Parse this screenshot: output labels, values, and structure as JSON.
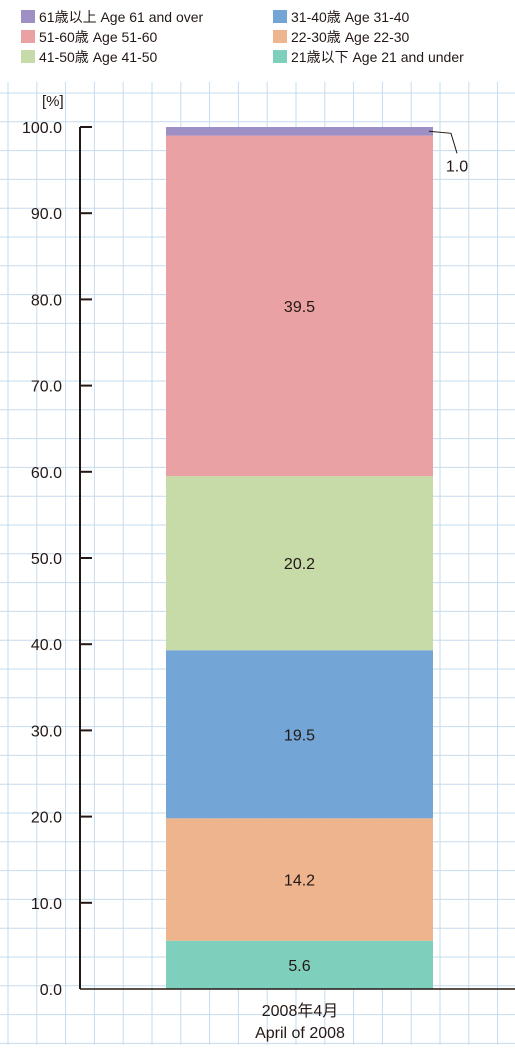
{
  "chart_data": {
    "type": "bar",
    "stacked": true,
    "unit_label": "[%]",
    "categories": [
      "2008年4月"
    ],
    "category_sublabels": [
      "April of 2008"
    ],
    "ylim": [
      0,
      100
    ],
    "y_ticks": [
      "0.0",
      "10.0",
      "20.0",
      "30.0",
      "40.0",
      "50.0",
      "60.0",
      "70.0",
      "80.0",
      "90.0",
      "100.0"
    ],
    "grid": true,
    "legend_position": "top",
    "legend": [
      {
        "label": "61歳以上 Age 61 and over",
        "color": "#9e8fc4"
      },
      {
        "label": "31-40歳 Age 31-40",
        "color": "#73a6d6"
      },
      {
        "label": "51-60歳 Age 51-60",
        "color": "#eaa1a3"
      },
      {
        "label": "22-30歳 Age 22-30",
        "color": "#eeb48e"
      },
      {
        "label": "41-50歳 Age 41-50",
        "color": "#c7dba8"
      },
      {
        "label": "21歳以下 Age 21 and under",
        "color": "#7fcfbd"
      }
    ],
    "series": [
      {
        "name": "21歳以下 Age 21 and under",
        "values": [
          5.6
        ],
        "label": "5.6",
        "color": "#7fcfbd"
      },
      {
        "name": "22-30歳 Age 22-30",
        "values": [
          14.2
        ],
        "label": "14.2",
        "color": "#eeb48e"
      },
      {
        "name": "31-40歳 Age 31-40",
        "values": [
          19.5
        ],
        "label": "19.5",
        "color": "#73a6d6"
      },
      {
        "name": "41-50歳 Age 41-50",
        "values": [
          20.2
        ],
        "label": "20.2",
        "color": "#c7dba8"
      },
      {
        "name": "51-60歳 Age 51-60",
        "values": [
          39.5
        ],
        "label": "39.5",
        "color": "#eaa1a3"
      },
      {
        "name": "61歳以上 Age 61 and over",
        "values": [
          1.0
        ],
        "label": "1.0",
        "color": "#9e8fc4"
      }
    ]
  }
}
